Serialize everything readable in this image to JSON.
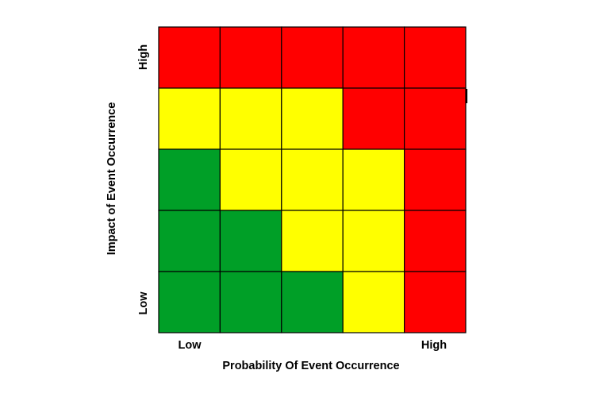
{
  "chart_data": {
    "type": "heatmap",
    "title": "",
    "xlabel": "Probability Of Event Occurrence",
    "ylabel": "Impact of Event Occurrence",
    "x_tick_low": "Low",
    "x_tick_high": "High",
    "y_tick_low": "Low",
    "y_tick_high": "High",
    "columns": 5,
    "rows": 5,
    "row_order": "top-to-bottom (High impact first)",
    "colors": {
      "red": "#ff0000",
      "yellow": "#ffff00",
      "green": "#009f27"
    },
    "grid": [
      [
        "red",
        "red",
        "red",
        "red",
        "red"
      ],
      [
        "yellow",
        "yellow",
        "yellow",
        "red",
        "red"
      ],
      [
        "green",
        "yellow",
        "yellow",
        "yellow",
        "red"
      ],
      [
        "green",
        "green",
        "yellow",
        "yellow",
        "red"
      ],
      [
        "green",
        "green",
        "green",
        "yellow",
        "red"
      ]
    ]
  }
}
